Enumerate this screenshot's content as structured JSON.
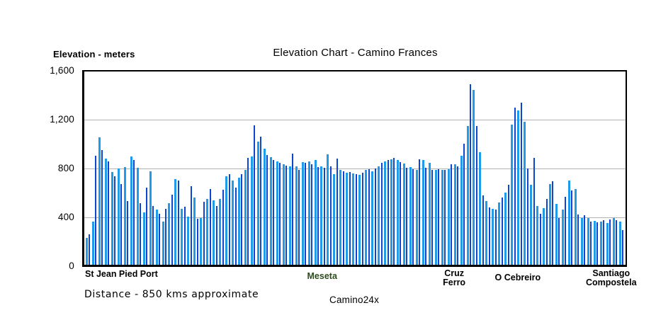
{
  "title": "Elevation Chart - Camino Frances",
  "y_axis": {
    "label": "Elevation - meters",
    "ticks": [
      "1,600",
      "1,200",
      "800",
      "400",
      "0"
    ]
  },
  "x_labels": {
    "start": "St Jean Pied Port",
    "meseta": "Meseta",
    "cruz_line1": "Cruz",
    "cruz_line2": "Ferro",
    "cebreiro": "O Cebreiro",
    "santiago_line1": "Santiago",
    "santiago_line2": "Compostela"
  },
  "footer": {
    "distance_note": "Distance - 850 kms approximate",
    "brand": "Camino24x"
  },
  "colors": {
    "bar_light": "#1e9ce9",
    "bar_dark": "#0c44d4",
    "meseta_label": "#2d4a1d",
    "gridline": "#b3b3b3"
  },
  "chart_data": {
    "type": "bar",
    "title": "Elevation Chart - Camino Frances",
    "xlabel": "Distance - 850 kms approximate",
    "ylabel": "Elevation - meters",
    "ylim": [
      0,
      1600
    ],
    "yticks": [
      0,
      400,
      800,
      1200,
      1600
    ],
    "grid": true,
    "gridlines_m": [
      400,
      800,
      1200
    ],
    "x_landmarks": [
      "St Jean Pied Port",
      "Meseta",
      "Cruz Ferro",
      "O Cebreiro",
      "Santiago Compostela"
    ],
    "unit": "meters",
    "values": [
      225,
      255,
      360,
      905,
      1055,
      950,
      880,
      855,
      770,
      730,
      800,
      670,
      810,
      525,
      895,
      865,
      805,
      510,
      435,
      640,
      775,
      485,
      455,
      425,
      360,
      465,
      510,
      580,
      710,
      695,
      465,
      480,
      400,
      650,
      560,
      380,
      390,
      520,
      545,
      625,
      535,
      485,
      545,
      620,
      730,
      750,
      700,
      640,
      720,
      750,
      785,
      885,
      895,
      1155,
      1020,
      1060,
      960,
      910,
      890,
      870,
      855,
      845,
      830,
      820,
      815,
      920,
      815,
      785,
      850,
      845,
      855,
      830,
      865,
      810,
      815,
      805,
      915,
      815,
      750,
      880,
      785,
      775,
      765,
      770,
      755,
      750,
      745,
      765,
      785,
      790,
      775,
      795,
      815,
      845,
      855,
      865,
      875,
      885,
      865,
      850,
      840,
      805,
      810,
      790,
      785,
      875,
      865,
      805,
      845,
      783,
      785,
      790,
      785,
      783,
      790,
      835,
      830,
      815,
      905,
      1005,
      1150,
      1495,
      1450,
      1150,
      930,
      575,
      525,
      475,
      465,
      460,
      515,
      560,
      600,
      660,
      1160,
      1300,
      1280,
      1345,
      1185,
      795,
      660,
      885,
      485,
      420,
      470,
      545,
      670,
      693,
      505,
      385,
      455,
      565,
      700,
      616,
      627,
      417,
      390,
      410,
      385,
      355,
      365,
      350,
      355,
      370,
      345,
      375,
      390,
      370,
      355,
      285
    ]
  }
}
